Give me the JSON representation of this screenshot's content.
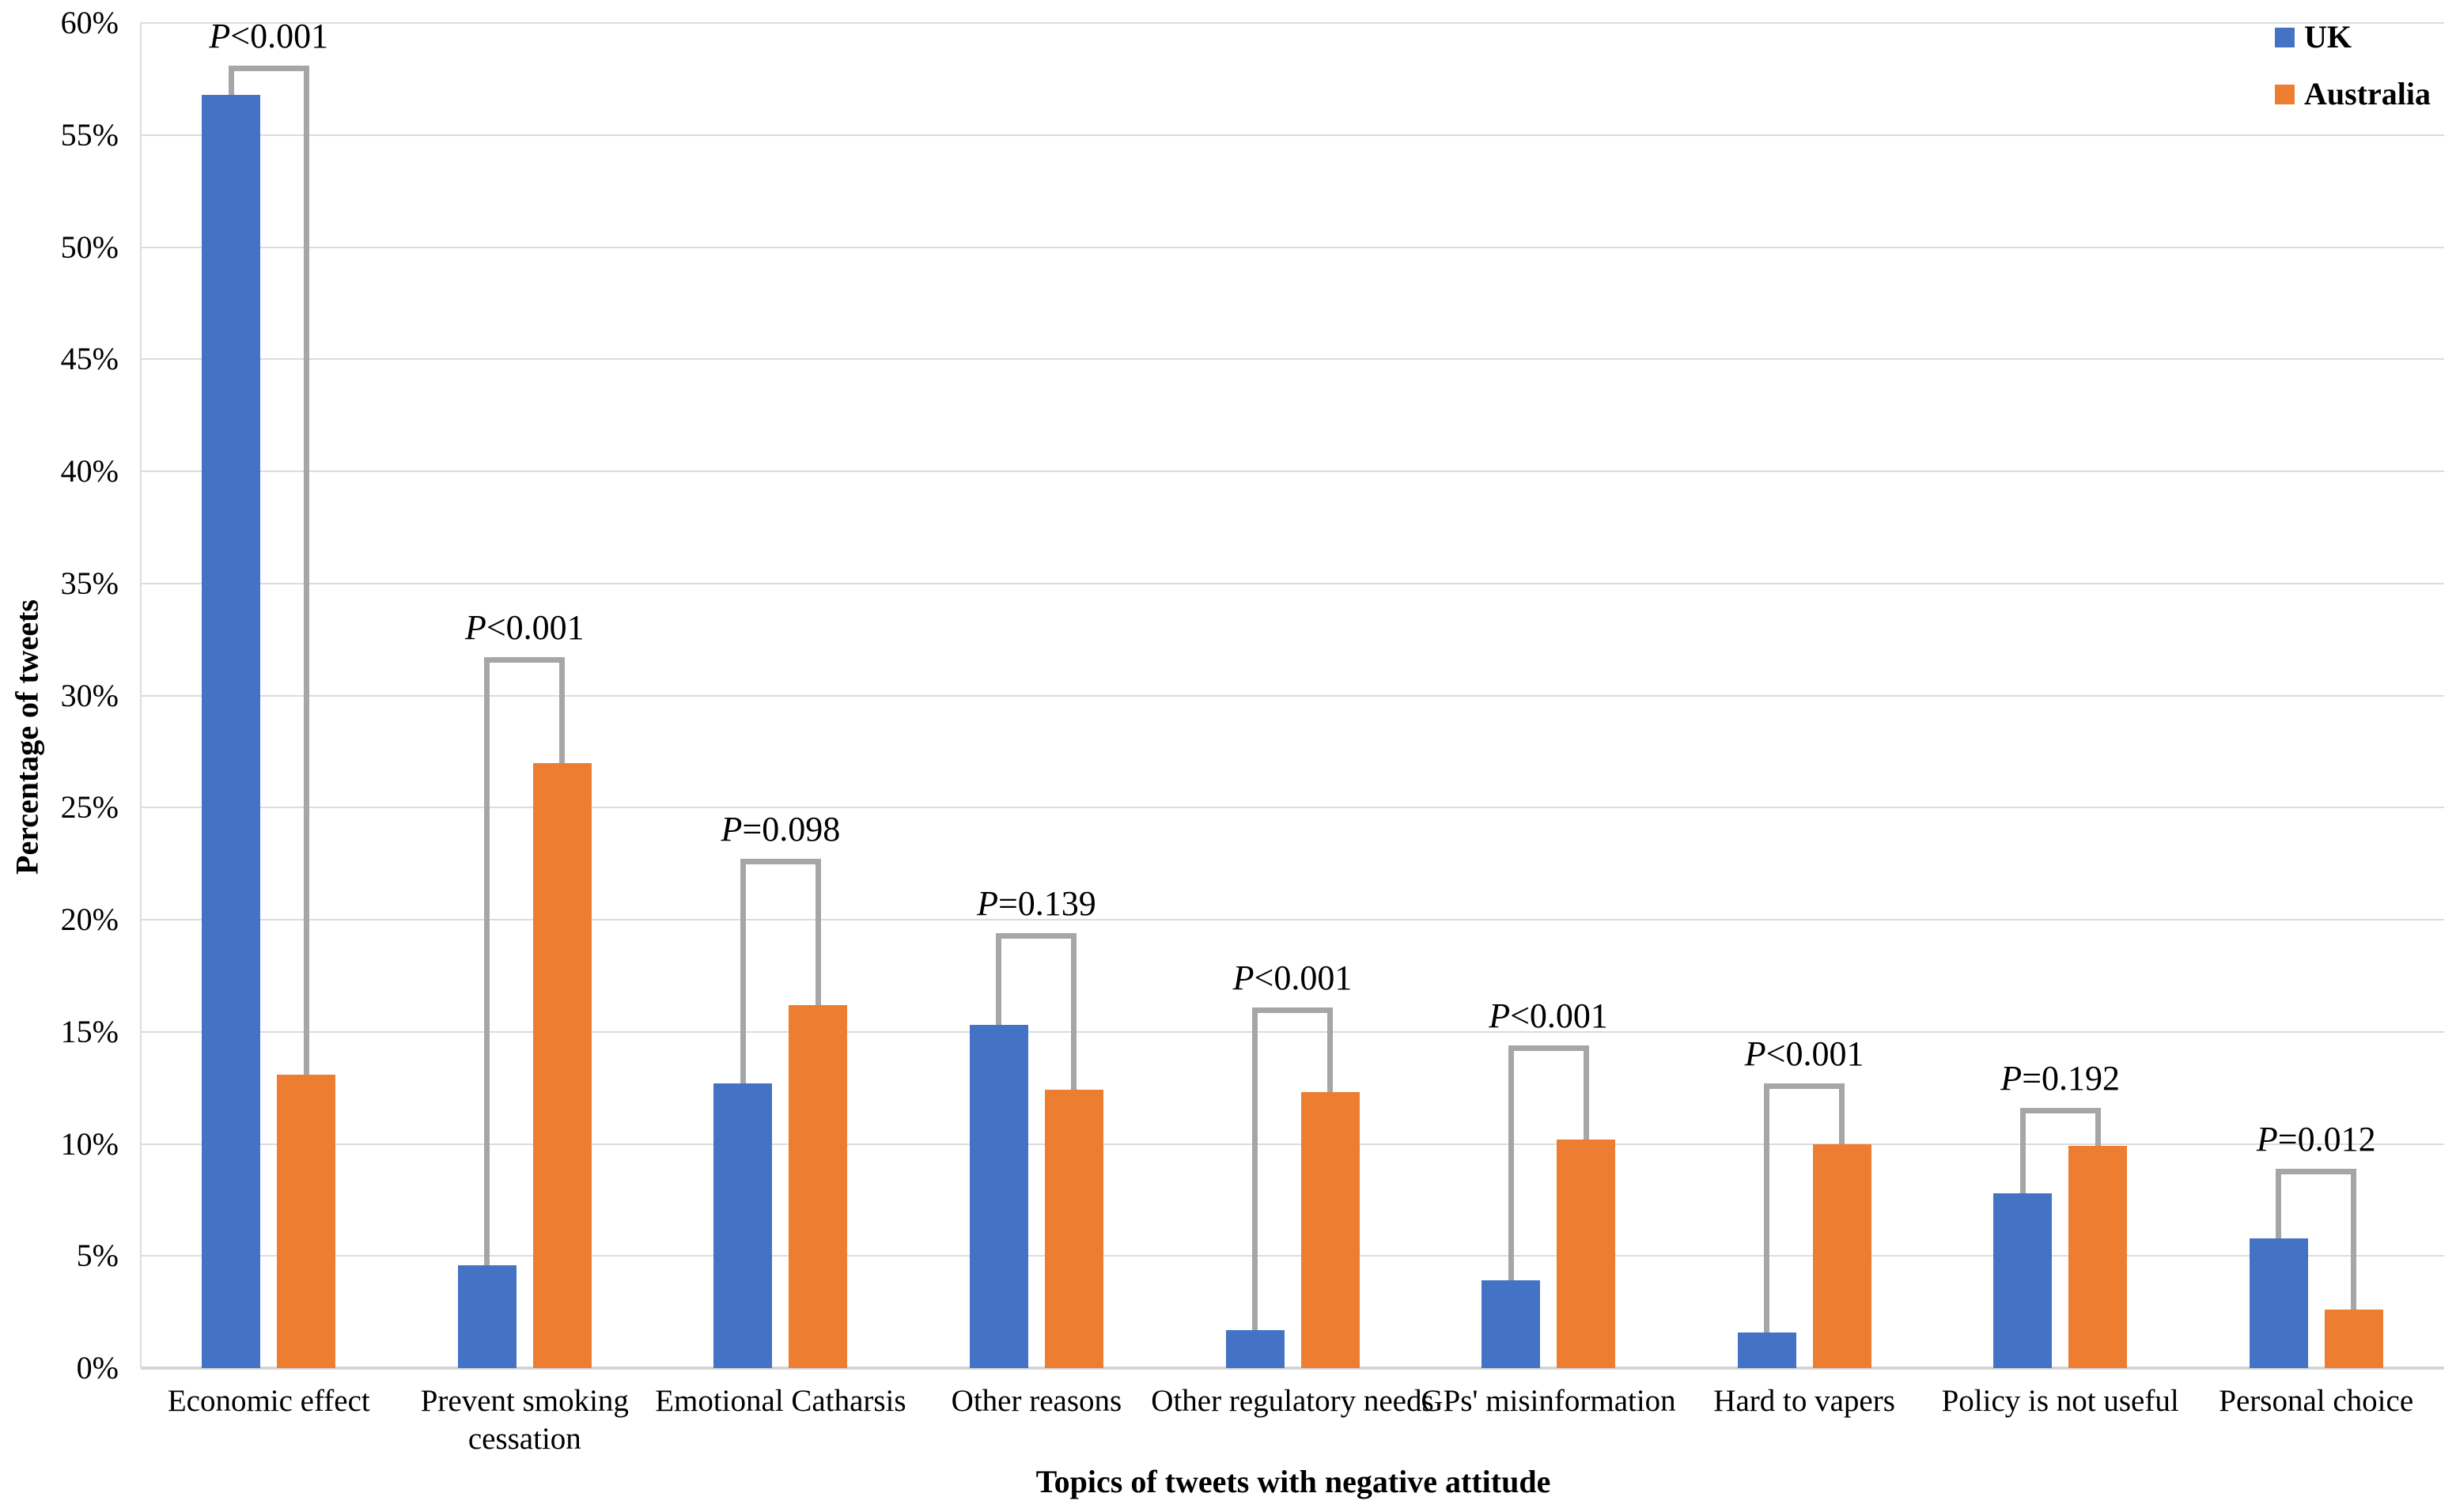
{
  "chart_data": {
    "type": "bar",
    "title": "",
    "categories": [
      "Economic effect",
      "Prevent smoking cessation",
      "Emotional Catharsis",
      "Other reasons",
      "Other regulatory needs",
      "GPs' misinformation",
      "Hard to vapers",
      "Policy is not useful",
      "Personal choice"
    ],
    "series": [
      {
        "name": "UK",
        "color": "#4472C4",
        "values": [
          56.8,
          4.6,
          12.7,
          15.3,
          1.7,
          3.9,
          1.6,
          7.8,
          5.8
        ]
      },
      {
        "name": "Australia",
        "color": "#ED7D31",
        "values": [
          13.1,
          27.0,
          16.2,
          12.4,
          12.3,
          10.2,
          10.0,
          9.9,
          2.6
        ]
      }
    ],
    "significance_brackets": [
      {
        "label": "P<0.001",
        "top_pct": 58.1
      },
      {
        "label": "P<0.001",
        "top_pct": 31.7
      },
      {
        "label": "P=0.098",
        "top_pct": 22.7
      },
      {
        "label": "P=0.139",
        "top_pct": 19.4
      },
      {
        "label": "P<0.001",
        "top_pct": 16.1
      },
      {
        "label": "P<0.001",
        "top_pct": 14.4
      },
      {
        "label": "P<0.001",
        "top_pct": 12.7
      },
      {
        "label": "P=0.192",
        "top_pct": 11.6
      },
      {
        "label": "P=0.012",
        "top_pct": 8.9
      }
    ],
    "xlabel": "Topics of tweets with negative attitude",
    "ylabel": "Percentage of tweets",
    "ylim": [
      0,
      60
    ],
    "ytick_step": 5,
    "ytick_format": "percent",
    "grid": true,
    "legend_position": "top-right"
  },
  "axes": {
    "y_ticks": [
      "60%",
      "55%",
      "50%",
      "45%",
      "40%",
      "35%",
      "30%",
      "25%",
      "20%",
      "15%",
      "10%",
      "5%",
      "0%"
    ],
    "y_title": "Percentage of tweets",
    "x_title": "Topics of tweets with negative attitude"
  },
  "legend": {
    "items": [
      {
        "label": "UK",
        "color": "#4472C4"
      },
      {
        "label": "Australia",
        "color": "#ED7D31"
      }
    ]
  },
  "colors": {
    "uk_series": "#4472C4",
    "australia_series": "#ED7D31",
    "gridline": "#DCDCDC",
    "axis_line": "#D5D5D5",
    "bracket": "#A6A6A6",
    "text": "#000000",
    "background": "#FFFFFF"
  }
}
